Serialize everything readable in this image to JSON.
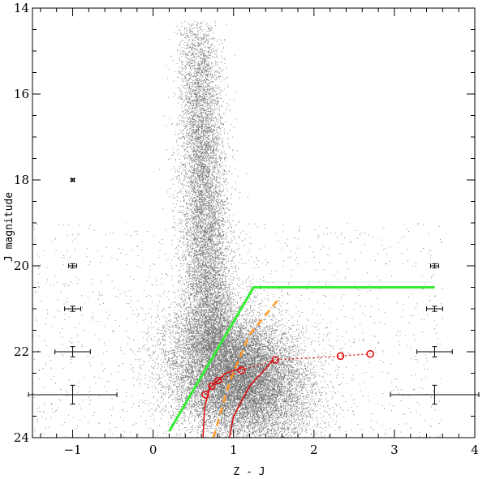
{
  "chart_data": {
    "type": "scatter",
    "title": "",
    "xlabel": "Z - J",
    "ylabel": "J magnitude",
    "xlim": [
      -1.5,
      4.0
    ],
    "ylim": [
      24,
      14
    ],
    "y_inverted": true,
    "grid": false,
    "x_ticks": [
      -1,
      0,
      1,
      2,
      3,
      4
    ],
    "x_tick_labels": [
      "-1",
      "0",
      "1",
      "2",
      "3",
      "4"
    ],
    "y_ticks": [
      14,
      16,
      18,
      20,
      22,
      24
    ],
    "y_tick_labels": [
      "14",
      "16",
      "18",
      "20",
      "22",
      "24"
    ],
    "colors": {
      "points": "#555555",
      "selection": "#33ee33",
      "track": "#dd1111",
      "dashed": "#ff9922",
      "axes": "#000000"
    },
    "scatter_regions": [
      {
        "x_center": 0.55,
        "x_sigma": 0.16,
        "y_min": 14.3,
        "y_max": 22.0,
        "x_drift_per_mag": 0.02
      },
      {
        "x_center": 1.05,
        "x_sigma": 0.42,
        "y_center": 22.6,
        "y_sigma": 0.75
      }
    ],
    "selection_line": {
      "x": [
        0.2,
        1.25,
        3.5
      ],
      "y": [
        23.85,
        20.5,
        20.5
      ]
    },
    "dashed_line": {
      "x": [
        0.75,
        0.95,
        1.2,
        1.55
      ],
      "y": [
        24.0,
        22.7,
        21.6,
        20.8
      ]
    },
    "solid_curves": [
      {
        "x": [
          0.62,
          0.64,
          0.7,
          0.9,
          1.1
        ],
        "y": [
          24.0,
          23.3,
          22.85,
          22.5,
          22.38
        ]
      },
      {
        "x": [
          0.95,
          1.0,
          1.2,
          1.5
        ],
        "y": [
          24.0,
          23.5,
          22.8,
          22.18
        ]
      }
    ],
    "track_points": {
      "x": [
        0.65,
        0.73,
        0.81,
        1.1,
        1.52,
        2.33,
        2.7
      ],
      "y": [
        23.0,
        22.8,
        22.67,
        22.43,
        22.19,
        22.1,
        22.05
      ]
    },
    "error_bars_left": [
      {
        "x": -1.0,
        "y": 18.0,
        "xerr": 0.02,
        "yerr": 0.03
      },
      {
        "x": -1.0,
        "y": 20.0,
        "xerr": 0.05,
        "yerr": 0.05
      },
      {
        "x": -1.0,
        "y": 21.0,
        "xerr": 0.1,
        "yerr": 0.06
      },
      {
        "x": -1.0,
        "y": 22.0,
        "xerr": 0.22,
        "yerr": 0.12
      },
      {
        "x": -1.0,
        "y": 23.0,
        "xerr": 0.55,
        "yerr": 0.22
      }
    ],
    "error_bars_right": [
      {
        "x": 3.5,
        "y": 20.0,
        "xerr": 0.05,
        "yerr": 0.05
      },
      {
        "x": 3.5,
        "y": 21.0,
        "xerr": 0.1,
        "yerr": 0.06
      },
      {
        "x": 3.5,
        "y": 22.0,
        "xerr": 0.22,
        "yerr": 0.12
      },
      {
        "x": 3.5,
        "y": 23.0,
        "xerr": 0.55,
        "yerr": 0.22
      }
    ]
  }
}
